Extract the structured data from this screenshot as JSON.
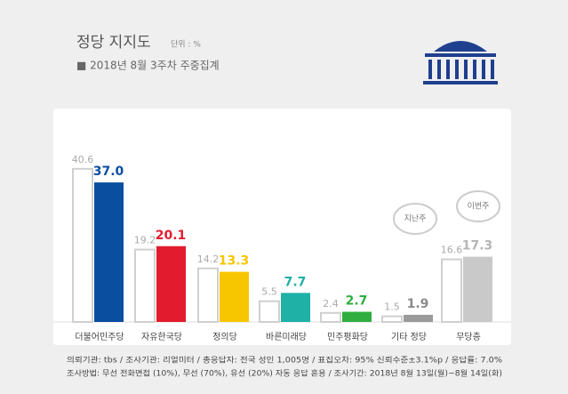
{
  "chart_data": {
    "type": "bar",
    "title": "정당 지지도",
    "unit": "단위 : %",
    "subtitle": "■ 2018년 8월 3주차 주중집계",
    "categories": [
      "더불어민주당",
      "자유한국당",
      "정의당",
      "바른미래당",
      "민주평화당",
      "기타 정당",
      "무당층"
    ],
    "series": [
      {
        "name": "지난주",
        "color": "#ffffff",
        "values": [
          40.6,
          19.2,
          14.2,
          5.5,
          2.4,
          1.5,
          16.6
        ]
      },
      {
        "name": "이번주",
        "colors": [
          "#0a4ea0",
          "#e31b2f",
          "#f7c600",
          "#1fb0a6",
          "#2fae3f",
          "#9a9a9a",
          "#c9c9c9"
        ],
        "label_colors": [
          "#0a4ea0",
          "#e31b2f",
          "#f7c600",
          "#1fb0a6",
          "#2fae3f",
          "#8a8a8a",
          "#b5b5b5"
        ],
        "values": [
          37.0,
          20.1,
          13.3,
          7.7,
          2.7,
          1.9,
          17.3
        ],
        "value_labels": [
          "37.0",
          "20.1",
          "13.3",
          "7.7",
          "2.7",
          "1.9",
          "17.3"
        ]
      }
    ],
    "notes": [
      "의뢰기관: tbs / 조사기관: 리얼미터 / 총응답자: 전국 성인 1,005명 / 표집오차: 95% 신뢰수준±3.1%p / 응답률: 7.0%",
      "조사방법: 무선 전화면접 (10%), 무선 (70%), 유선 (20%) 자동 응답 혼용 / 조사기간: 2018년 8월 13일(월)~8월 14일(화)"
    ]
  }
}
